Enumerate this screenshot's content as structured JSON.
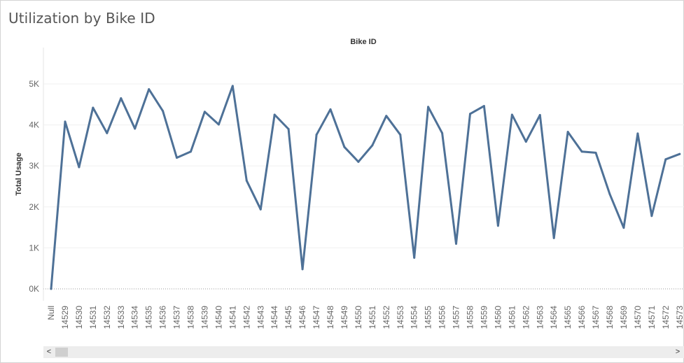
{
  "title": "Utilization by Bike ID",
  "chart_data": {
    "type": "line",
    "title": "Utilization by Bike ID",
    "header_label": "Bike ID",
    "xlabel": "",
    "ylabel": "Total Usage",
    "ylim": [
      -300,
      6000
    ],
    "yticks": [
      0,
      1000,
      2000,
      3000,
      4000,
      5000
    ],
    "ytick_labels": [
      "0K",
      "1K",
      "2K",
      "3K",
      "4K",
      "5K"
    ],
    "grid": true,
    "legend": "none",
    "color": "#4e7197",
    "categories": [
      "Null",
      "14529",
      "14530",
      "14531",
      "14532",
      "14533",
      "14534",
      "14535",
      "14536",
      "14537",
      "14538",
      "14539",
      "14540",
      "14541",
      "14542",
      "14543",
      "14544",
      "14545",
      "14546",
      "14547",
      "14548",
      "14549",
      "14550",
      "14551",
      "14552",
      "14553",
      "14554",
      "14555",
      "14556",
      "14557",
      "14558",
      "14559",
      "14560",
      "14561",
      "14562",
      "14563",
      "14564",
      "14565",
      "14566",
      "14567",
      "14568",
      "14569",
      "14570",
      "14571",
      "14572",
      "14573"
    ],
    "values": [
      0,
      4080,
      2970,
      4420,
      3800,
      4650,
      3910,
      4870,
      4340,
      3200,
      3350,
      4320,
      4010,
      4950,
      2640,
      1940,
      4250,
      3900,
      480,
      3760,
      4380,
      3460,
      3100,
      3500,
      4220,
      3760,
      760,
      4440,
      3800,
      1100,
      4270,
      4460,
      1540,
      4250,
      3590,
      4240,
      1240,
      3830,
      3350,
      3320,
      2310,
      1490,
      3790,
      1780,
      3160,
      3290
    ]
  },
  "scrollbar": {
    "left_arrow": "<",
    "right_arrow": ">"
  }
}
